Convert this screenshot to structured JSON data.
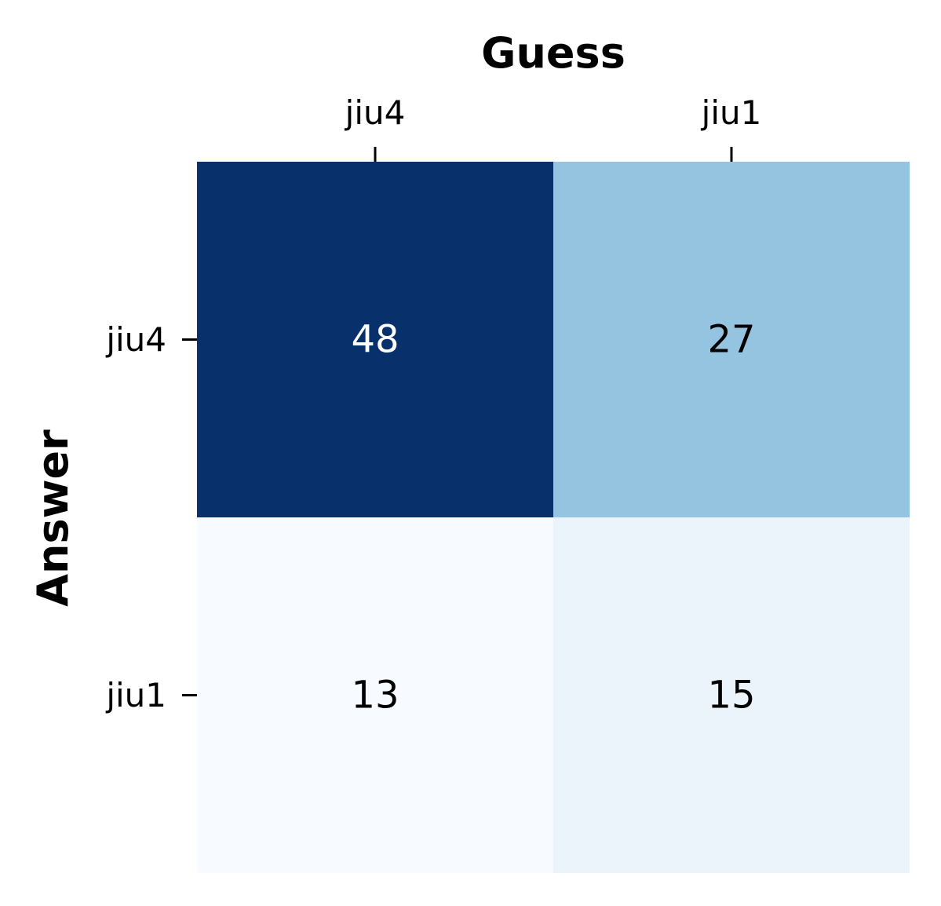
{
  "chart_data": {
    "type": "heatmap",
    "xlabel": "Guess",
    "ylabel": "Answer",
    "x_categories": [
      "jiu4",
      "jiu1"
    ],
    "y_categories": [
      "jiu4",
      "jiu1"
    ],
    "values": [
      [
        48,
        27
      ],
      [
        13,
        15
      ]
    ],
    "colormap": "Blues",
    "colorbar": false,
    "x_axis_position": "top"
  }
}
